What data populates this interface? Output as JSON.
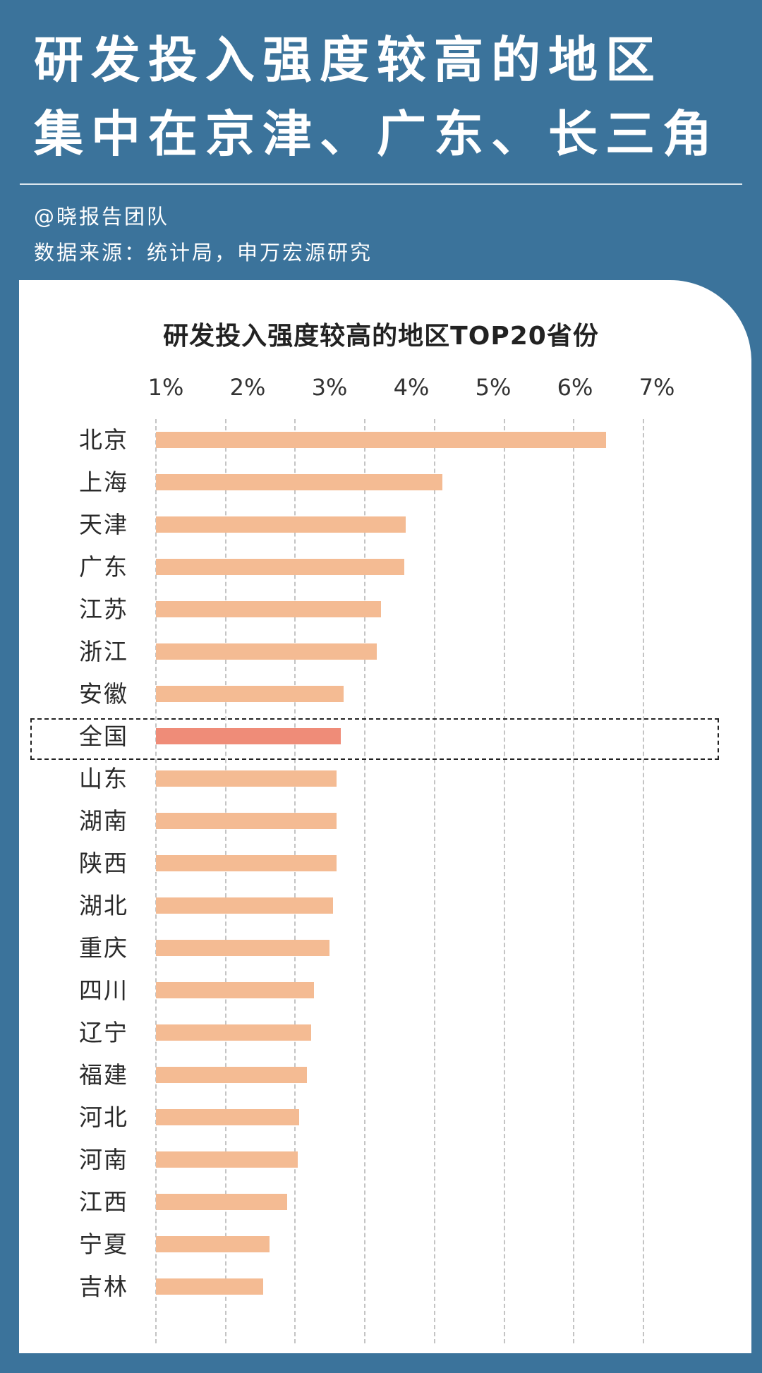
{
  "header": {
    "title_line1": "研发投入强度较高的地区",
    "title_line2": "集中在京津、广东、长三角",
    "author": "@晓报告团队",
    "source": "数据来源：统计局，申万宏源研究"
  },
  "colors": {
    "background": "#3b739b",
    "bar": "#f4bb93",
    "highlight_bar": "#ef8c78"
  },
  "chart_data": {
    "type": "bar",
    "orientation": "horizontal",
    "title": "研发投入强度较高的地区TOP20省份",
    "tick_labels": [
      "1%",
      "2%",
      "3%",
      "4%",
      "5%",
      "6%",
      "7%"
    ],
    "xlim": [
      0,
      7
    ],
    "grid": true,
    "highlight": "全国",
    "categories": [
      "北京",
      "上海",
      "天津",
      "广东",
      "江苏",
      "浙江",
      "安徽",
      "全国",
      "山东",
      "湖南",
      "陕西",
      "湖北",
      "重庆",
      "四川",
      "辽宁",
      "福建",
      "河北",
      "河南",
      "江西",
      "宁夏",
      "吉林"
    ],
    "values": [
      6.46,
      4.11,
      3.59,
      3.57,
      3.23,
      3.17,
      2.69,
      2.65,
      2.59,
      2.59,
      2.59,
      2.54,
      2.49,
      2.27,
      2.23,
      2.17,
      2.06,
      2.04,
      1.88,
      1.63,
      1.54
    ],
    "unit": "%"
  }
}
